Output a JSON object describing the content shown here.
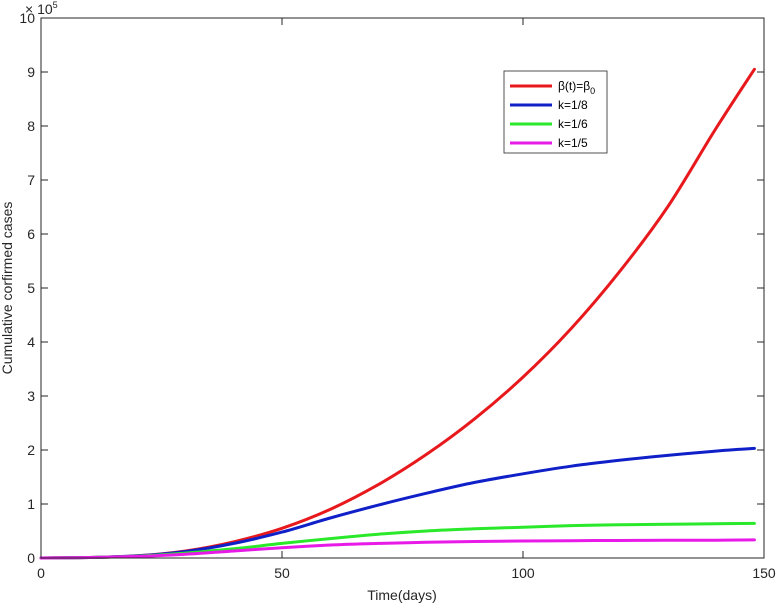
{
  "chart_data": {
    "type": "line",
    "title": "",
    "xlabel": "Time(days)",
    "ylabel": "Cumulative corfirmed cases",
    "y_multiplier": "× 10",
    "y_exponent": "5",
    "xlim": [
      0,
      150
    ],
    "ylim": [
      0,
      10
    ],
    "x_ticks": [
      0,
      50,
      100,
      150
    ],
    "y_ticks": [
      0,
      1,
      2,
      3,
      4,
      5,
      6,
      7,
      8,
      9,
      10
    ],
    "grid": false,
    "legend_position": "top-right",
    "x": [
      0,
      10,
      20,
      30,
      40,
      50,
      60,
      70,
      80,
      90,
      100,
      110,
      120,
      130,
      140,
      148
    ],
    "series": [
      {
        "name": "β(t)=β",
        "name_sub": "0",
        "color": "#e8191d",
        "values": [
          0,
          0.01,
          0.04,
          0.13,
          0.3,
          0.55,
          0.9,
          1.36,
          1.92,
          2.58,
          3.35,
          4.25,
          5.3,
          6.5,
          7.95,
          9.05
        ]
      },
      {
        "name": "k=1/8",
        "color": "#1020c8",
        "values": [
          0,
          0.01,
          0.04,
          0.12,
          0.27,
          0.48,
          0.74,
          0.98,
          1.2,
          1.4,
          1.56,
          1.7,
          1.81,
          1.9,
          1.98,
          2.03
        ]
      },
      {
        "name": "k=1/6",
        "color": "#2ae82a",
        "values": [
          0,
          0.01,
          0.035,
          0.09,
          0.17,
          0.27,
          0.36,
          0.44,
          0.5,
          0.54,
          0.57,
          0.6,
          0.615,
          0.625,
          0.635,
          0.64
        ]
      },
      {
        "name": "k=1/5",
        "color": "#e81ae8",
        "values": [
          0,
          0.01,
          0.03,
          0.07,
          0.13,
          0.19,
          0.24,
          0.27,
          0.29,
          0.305,
          0.315,
          0.32,
          0.325,
          0.328,
          0.33,
          0.335
        ]
      }
    ]
  }
}
